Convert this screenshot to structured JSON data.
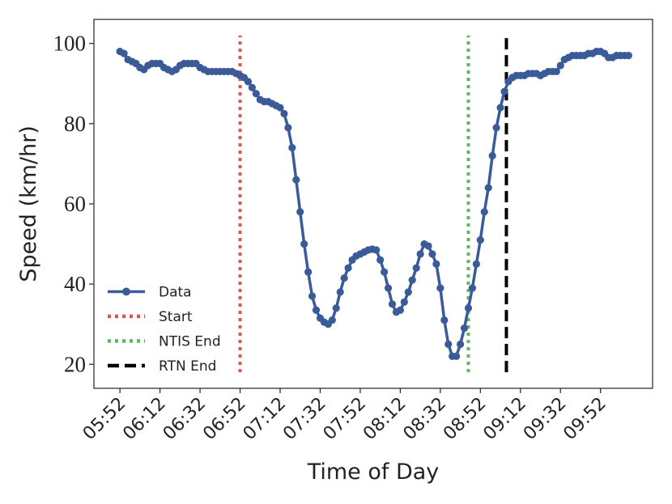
{
  "chart_data": {
    "type": "line",
    "xlabel": "Time of Day",
    "ylabel": "Speed (km/hr)",
    "x": [
      "05:52",
      "05:54",
      "05:56",
      "05:58",
      "06:00",
      "06:02",
      "06:04",
      "06:06",
      "06:08",
      "06:10",
      "06:12",
      "06:14",
      "06:16",
      "06:18",
      "06:20",
      "06:22",
      "06:24",
      "06:26",
      "06:28",
      "06:30",
      "06:32",
      "06:34",
      "06:36",
      "06:38",
      "06:40",
      "06:42",
      "06:44",
      "06:46",
      "06:48",
      "06:50",
      "06:52",
      "06:54",
      "06:56",
      "06:58",
      "07:00",
      "07:02",
      "07:04",
      "07:06",
      "07:08",
      "07:10",
      "07:12",
      "07:14",
      "07:16",
      "07:18",
      "07:20",
      "07:22",
      "07:24",
      "07:26",
      "07:28",
      "07:30",
      "07:32",
      "07:34",
      "07:36",
      "07:38",
      "07:40",
      "07:42",
      "07:44",
      "07:46",
      "07:48",
      "07:50",
      "07:52",
      "07:54",
      "07:56",
      "07:58",
      "08:00",
      "08:02",
      "08:04",
      "08:06",
      "08:08",
      "08:10",
      "08:12",
      "08:14",
      "08:16",
      "08:18",
      "08:20",
      "08:22",
      "08:24",
      "08:26",
      "08:28",
      "08:30",
      "08:32",
      "08:34",
      "08:36",
      "08:38",
      "08:40",
      "08:42",
      "08:44",
      "08:46",
      "08:48",
      "08:50",
      "08:52",
      "08:54",
      "08:56",
      "08:58",
      "09:00",
      "09:02",
      "09:04",
      "09:06",
      "09:08",
      "09:10",
      "09:12",
      "09:14",
      "09:16",
      "09:18",
      "09:20",
      "09:22",
      "09:24",
      "09:26",
      "09:28",
      "09:30",
      "09:32",
      "09:34",
      "09:36",
      "09:38",
      "09:40",
      "09:42",
      "09:44",
      "09:46",
      "09:48",
      "09:50",
      "09:52",
      "09:54",
      "09:56",
      "09:58",
      "10:00",
      "10:02",
      "10:04",
      "10:06"
    ],
    "series": [
      {
        "name": "Data",
        "color": "#3a5a98",
        "values": [
          98,
          97.5,
          96,
          95.5,
          95,
          94,
          93.5,
          94.5,
          95,
          95,
          95,
          94,
          93.5,
          93,
          93.5,
          94.5,
          95,
          95,
          95,
          95,
          94,
          93.5,
          93,
          93,
          93,
          93,
          93,
          93,
          93,
          92.5,
          92,
          91.5,
          90.5,
          89,
          87.5,
          86,
          85.5,
          85.5,
          85,
          84.5,
          84,
          82.5,
          79,
          74,
          66,
          58,
          50,
          43,
          37,
          33.5,
          31.5,
          30.5,
          30,
          31,
          34,
          38,
          41.5,
          44,
          46,
          47,
          47.5,
          48,
          48.5,
          48.7,
          48.5,
          46,
          43,
          39,
          35,
          33,
          33.5,
          35.5,
          38,
          41,
          44,
          47.5,
          50,
          49.5,
          47.5,
          45,
          39,
          31,
          25,
          22,
          22,
          25,
          29,
          34,
          39,
          45,
          51,
          58,
          64,
          72,
          79,
          84,
          88,
          90.5,
          91.5,
          92,
          92,
          92,
          92.5,
          92.5,
          92.5,
          92,
          92.5,
          93,
          93,
          93,
          94.5,
          96,
          96.5,
          97,
          97,
          97,
          97,
          97.5,
          97.5,
          98,
          98,
          97.5,
          96.5,
          96.5,
          97,
          97,
          97,
          97
        ]
      }
    ],
    "vlines": [
      {
        "name": "Start",
        "x": "06:52",
        "y_range": [
          18,
          102
        ],
        "color": "#d9544d",
        "style": "dotted"
      },
      {
        "name": "NTIS End",
        "x": "08:46",
        "y_range": [
          18,
          102
        ],
        "color": "#5cb85c",
        "style": "dotted"
      },
      {
        "name": "RTN End",
        "x": "09:05",
        "y_range": [
          18,
          102
        ],
        "color": "#000000",
        "style": "dashed"
      }
    ],
    "xlim": [
      "05:39",
      "10:18"
    ],
    "xticks": [
      "05:52",
      "06:12",
      "06:32",
      "06:52",
      "07:12",
      "07:32",
      "07:52",
      "08:12",
      "08:32",
      "08:52",
      "09:12",
      "09:32",
      "09:52"
    ],
    "ylim": [
      14,
      106
    ],
    "yticks": [
      20,
      40,
      60,
      80,
      100
    ],
    "legend": "lower left",
    "grid": false
  }
}
